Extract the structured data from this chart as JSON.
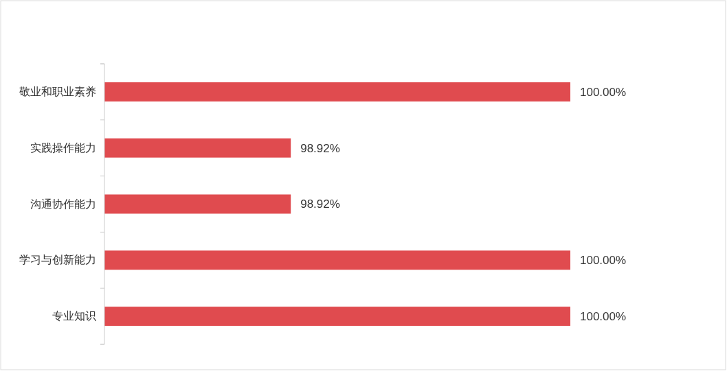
{
  "chart_data": {
    "type": "bar",
    "orientation": "horizontal",
    "categories": [
      "敬业和职业素养",
      "实践操作能力",
      "沟通协作能力",
      "学习与创新能力",
      "专业知识"
    ],
    "values": [
      100,
      98.92,
      98.92,
      100,
      100
    ],
    "value_labels": [
      "100.00%",
      "98.92%",
      "98.92%",
      "100.00%",
      "100.00%"
    ],
    "color": "#e04b4f",
    "xlim": [
      98.2,
      100
    ],
    "tick_labels": "y",
    "grid": false
  }
}
